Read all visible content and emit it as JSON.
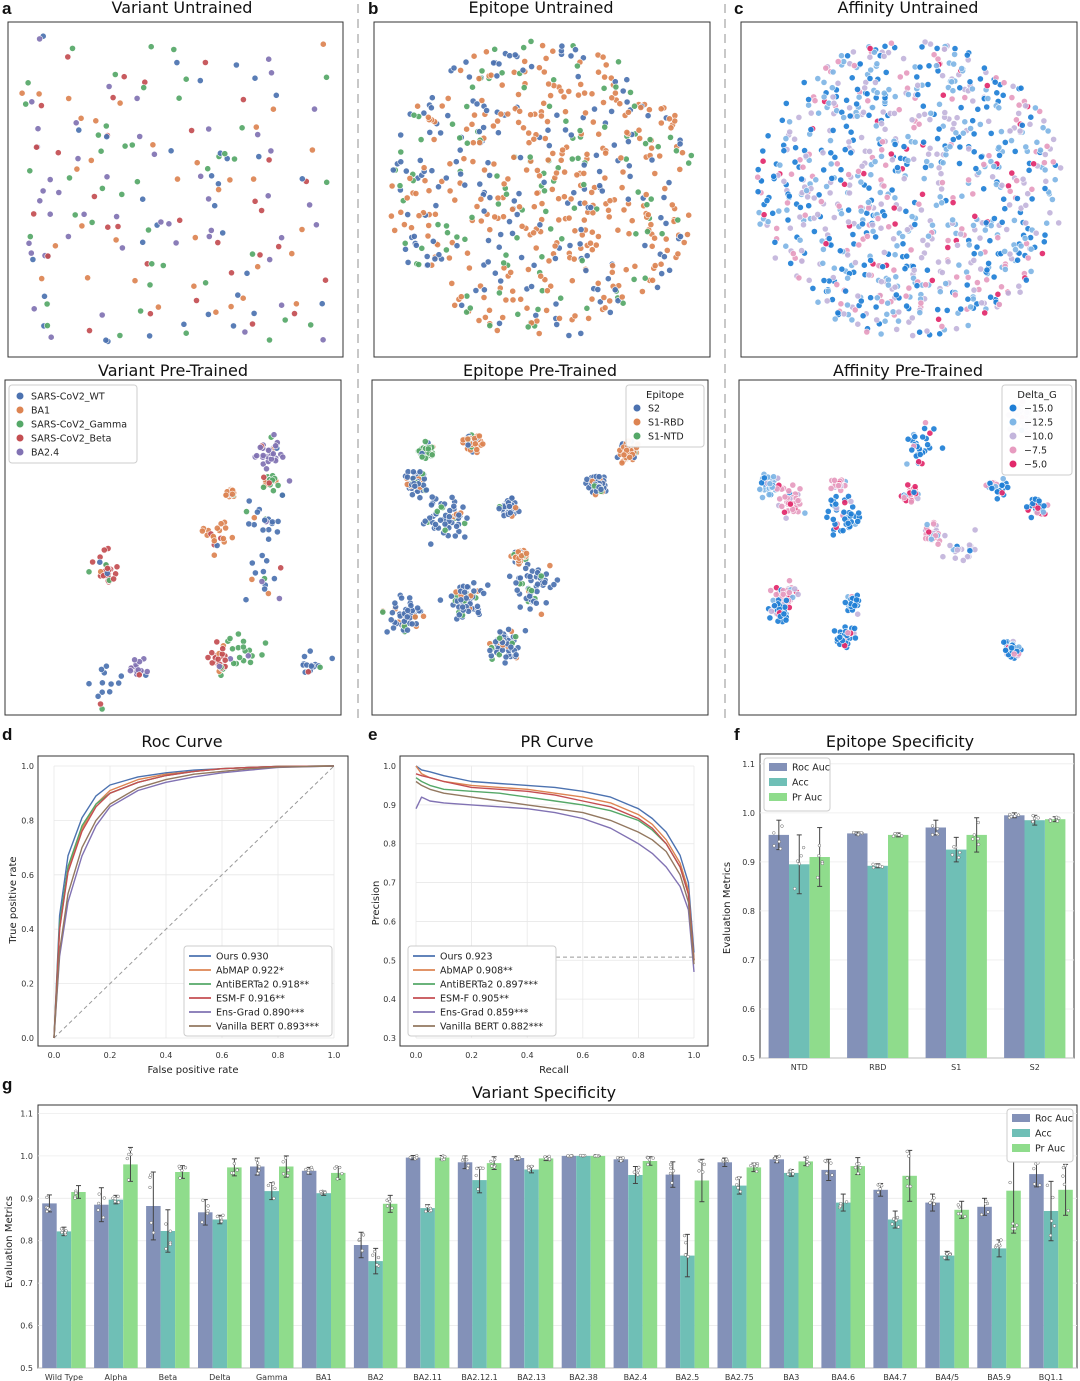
{
  "panel_letters": [
    "a",
    "b",
    "c",
    "d",
    "e",
    "f",
    "g"
  ],
  "scatter_panels": [
    {
      "id": "variant_untrained",
      "title": "Variant Untrained",
      "kind": "variant",
      "seed": 11,
      "count": 190,
      "spread": "uniform"
    },
    {
      "id": "epitope_untrained",
      "title": "Epitope Untrained",
      "kind": "epitope",
      "seed": 23,
      "count": 620,
      "spread": "disc"
    },
    {
      "id": "affinity_untrained",
      "title": "Affinity Untrained",
      "kind": "affinity",
      "seed": 37,
      "count": 900,
      "spread": "disc"
    },
    {
      "id": "variant_pretrained",
      "title": "Variant Pre-Trained",
      "kind": "variant",
      "seed": 41,
      "count": 240,
      "spread": "clusters",
      "legend_title": "",
      "legend": [
        "SARS-CoV2_WT",
        "BA1",
        "SARS-CoV2_Gamma",
        "SARS-CoV2_Beta",
        "BA2.4"
      ]
    },
    {
      "id": "epitope_pretrained",
      "title": "Epitope Pre-Trained",
      "kind": "epitope",
      "seed": 53,
      "count": 700,
      "spread": "clusters",
      "legend_title": "Epitope",
      "legend": [
        "S2",
        "S1-RBD",
        "S1-NTD"
      ]
    },
    {
      "id": "affinity_pretrained",
      "title": "Affinity Pre-Trained",
      "kind": "affinity",
      "seed": 67,
      "count": 520,
      "spread": "clusters",
      "legend_title": "Delta_G",
      "legend": [
        "−15.0",
        "−12.5",
        "−10.0",
        "−7.5",
        "−5.0"
      ]
    }
  ],
  "palettes": {
    "variant": [
      "#4c72b0",
      "#dd8452",
      "#55a868",
      "#c44e52",
      "#8172b3"
    ],
    "epitope": [
      "#4c72b0",
      "#dd8452",
      "#55a868"
    ],
    "affinity": [
      "#1f7fd6",
      "#7fb6e6",
      "#c3b5dc",
      "#e79cc0",
      "#e2296b"
    ]
  },
  "chart_data": [
    {
      "id": "roc",
      "type": "line",
      "title": "Roc Curve",
      "xlabel": "False positive rate",
      "ylabel": "True positive rate",
      "xlim": [
        0,
        1
      ],
      "ylim": [
        0,
        1
      ],
      "xticks": [
        "0.0",
        "0.2",
        "0.4",
        "0.6",
        "0.8",
        "1.0"
      ],
      "yticks": [
        "0.0",
        "0.2",
        "0.4",
        "0.6",
        "0.8",
        "1.0"
      ],
      "legend_position": "lower-right",
      "diagonal": true,
      "series": [
        {
          "name": "Ours 0.930",
          "color": "#4c72b0",
          "x": [
            0,
            0.02,
            0.05,
            0.1,
            0.15,
            0.2,
            0.3,
            0.4,
            0.5,
            0.6,
            0.7,
            0.8,
            1.0
          ],
          "y": [
            0,
            0.45,
            0.67,
            0.81,
            0.89,
            0.93,
            0.96,
            0.975,
            0.985,
            0.99,
            0.995,
            0.998,
            1.0
          ]
        },
        {
          "name": "AbMAP 0.922*",
          "color": "#dd8452",
          "x": [
            0,
            0.02,
            0.05,
            0.1,
            0.15,
            0.2,
            0.3,
            0.4,
            0.5,
            0.6,
            0.7,
            0.8,
            1.0
          ],
          "y": [
            0,
            0.4,
            0.62,
            0.77,
            0.86,
            0.91,
            0.95,
            0.97,
            0.98,
            0.99,
            0.995,
            0.998,
            1.0
          ]
        },
        {
          "name": "AntiBERTa2 0.918**",
          "color": "#55a868",
          "x": [
            0,
            0.02,
            0.05,
            0.1,
            0.15,
            0.2,
            0.3,
            0.4,
            0.5,
            0.6,
            0.7,
            0.8,
            1.0
          ],
          "y": [
            0,
            0.42,
            0.63,
            0.78,
            0.86,
            0.9,
            0.94,
            0.965,
            0.98,
            0.99,
            0.995,
            0.998,
            1.0
          ]
        },
        {
          "name": "ESM-F 0.916**",
          "color": "#c44e52",
          "x": [
            0,
            0.02,
            0.05,
            0.1,
            0.15,
            0.2,
            0.3,
            0.4,
            0.5,
            0.6,
            0.7,
            0.8,
            1.0
          ],
          "y": [
            0,
            0.4,
            0.61,
            0.76,
            0.85,
            0.9,
            0.94,
            0.965,
            0.98,
            0.99,
            0.995,
            0.998,
            1.0
          ]
        },
        {
          "name": "Ens-Grad 0.890***",
          "color": "#8172b3",
          "x": [
            0,
            0.02,
            0.05,
            0.1,
            0.15,
            0.2,
            0.3,
            0.4,
            0.5,
            0.6,
            0.7,
            0.8,
            1.0
          ],
          "y": [
            0,
            0.3,
            0.5,
            0.67,
            0.78,
            0.85,
            0.91,
            0.94,
            0.96,
            0.975,
            0.985,
            0.995,
            1.0
          ]
        },
        {
          "name": "Vanilla BERT 0.893***",
          "color": "#937860",
          "x": [
            0,
            0.02,
            0.05,
            0.1,
            0.15,
            0.2,
            0.3,
            0.4,
            0.5,
            0.6,
            0.7,
            0.8,
            1.0
          ],
          "y": [
            0,
            0.32,
            0.53,
            0.7,
            0.8,
            0.86,
            0.92,
            0.95,
            0.97,
            0.98,
            0.99,
            0.996,
            1.0
          ]
        }
      ]
    },
    {
      "id": "pr",
      "type": "line",
      "title": "PR Curve",
      "xlabel": "Recall",
      "ylabel": "Precision",
      "xlim": [
        0,
        1
      ],
      "ylim": [
        0.3,
        1.0
      ],
      "xticks": [
        "0.0",
        "0.2",
        "0.4",
        "0.6",
        "0.8",
        "1.0"
      ],
      "yticks": [
        "0.3",
        "0.4",
        "0.5",
        "0.6",
        "0.7",
        "0.8",
        "0.9",
        "1.0"
      ],
      "legend_position": "lower-left",
      "baseline": 0.508,
      "series": [
        {
          "name": "Ours 0.923",
          "color": "#4c72b0",
          "x": [
            0,
            0.02,
            0.05,
            0.1,
            0.2,
            0.3,
            0.4,
            0.5,
            0.6,
            0.7,
            0.8,
            0.85,
            0.9,
            0.95,
            0.98,
            1.0
          ],
          "y": [
            1.0,
            0.99,
            0.985,
            0.975,
            0.96,
            0.955,
            0.95,
            0.945,
            0.935,
            0.92,
            0.89,
            0.865,
            0.83,
            0.77,
            0.7,
            0.52
          ]
        },
        {
          "name": "AbMAP 0.908**",
          "color": "#dd8452",
          "x": [
            0,
            0.02,
            0.05,
            0.1,
            0.2,
            0.3,
            0.4,
            0.5,
            0.6,
            0.7,
            0.8,
            0.85,
            0.9,
            0.95,
            0.98,
            1.0
          ],
          "y": [
            1.0,
            0.98,
            0.97,
            0.96,
            0.95,
            0.945,
            0.94,
            0.93,
            0.92,
            0.905,
            0.875,
            0.85,
            0.81,
            0.75,
            0.68,
            0.5
          ]
        },
        {
          "name": "AntiBERTa2 0.897***",
          "color": "#55a868",
          "x": [
            0,
            0.02,
            0.05,
            0.1,
            0.2,
            0.3,
            0.4,
            0.5,
            0.6,
            0.7,
            0.8,
            0.85,
            0.9,
            0.95,
            0.98,
            1.0
          ],
          "y": [
            0.97,
            0.96,
            0.95,
            0.94,
            0.935,
            0.93,
            0.92,
            0.91,
            0.9,
            0.885,
            0.86,
            0.835,
            0.8,
            0.74,
            0.67,
            0.5
          ]
        },
        {
          "name": "ESM-F 0.905**",
          "color": "#c44e52",
          "x": [
            0,
            0.02,
            0.05,
            0.1,
            0.2,
            0.3,
            0.4,
            0.5,
            0.6,
            0.7,
            0.8,
            0.85,
            0.9,
            0.95,
            0.98,
            1.0
          ],
          "y": [
            0.98,
            0.975,
            0.97,
            0.96,
            0.945,
            0.94,
            0.935,
            0.925,
            0.91,
            0.895,
            0.865,
            0.84,
            0.8,
            0.74,
            0.67,
            0.5
          ]
        },
        {
          "name": "Ens-Grad 0.859***",
          "color": "#8172b3",
          "x": [
            0,
            0.02,
            0.05,
            0.1,
            0.2,
            0.3,
            0.4,
            0.5,
            0.6,
            0.7,
            0.8,
            0.85,
            0.9,
            0.95,
            0.98,
            1.0
          ],
          "y": [
            0.89,
            0.92,
            0.91,
            0.905,
            0.9,
            0.895,
            0.89,
            0.88,
            0.865,
            0.84,
            0.8,
            0.775,
            0.74,
            0.69,
            0.63,
            0.47
          ]
        },
        {
          "name": "Vanilla BERT 0.882***",
          "color": "#937860",
          "x": [
            0,
            0.02,
            0.05,
            0.1,
            0.2,
            0.3,
            0.4,
            0.5,
            0.6,
            0.7,
            0.8,
            0.85,
            0.9,
            0.95,
            0.98,
            1.0
          ],
          "y": [
            0.96,
            0.95,
            0.94,
            0.93,
            0.92,
            0.91,
            0.9,
            0.89,
            0.88,
            0.86,
            0.83,
            0.81,
            0.78,
            0.72,
            0.65,
            0.49
          ]
        }
      ]
    },
    {
      "id": "epitope_spec",
      "type": "bar",
      "title": "Epitope Specificity",
      "xlabel": "",
      "ylabel": "Evaluation Metrics",
      "ylim": [
        0.5,
        1.12
      ],
      "yticks": [
        "0.5",
        "0.6",
        "0.7",
        "0.8",
        "0.9",
        "1.0",
        "1.1"
      ],
      "legend_position": "top-left",
      "categories": [
        "NTD",
        "RBD",
        "S1",
        "S2"
      ],
      "series": [
        {
          "name": "Roc Auc",
          "color": "#8391b8",
          "values": [
            0.955,
            0.958,
            0.97,
            0.995
          ],
          "err": [
            0.03,
            0.003,
            0.015,
            0.005
          ]
        },
        {
          "name": "Acc",
          "color": "#6fbfb6",
          "values": [
            0.895,
            0.892,
            0.925,
            0.985
          ],
          "err": [
            0.06,
            0.004,
            0.025,
            0.01
          ]
        },
        {
          "name": "Pr Auc",
          "color": "#8fdc8c",
          "values": [
            0.91,
            0.955,
            0.955,
            0.987
          ],
          "err": [
            0.06,
            0.004,
            0.035,
            0.005
          ]
        }
      ]
    },
    {
      "id": "variant_spec",
      "type": "bar",
      "title": "Variant Specificity",
      "xlabel": "",
      "ylabel": "Evaluation Metrics",
      "ylim": [
        0.5,
        1.12
      ],
      "yticks": [
        "0.5",
        "0.6",
        "0.7",
        "0.8",
        "0.9",
        "1.0",
        "1.1"
      ],
      "legend_position": "top-right",
      "categories": [
        "Wild Type",
        "Alpha",
        "Beta",
        "Delta",
        "Gamma",
        "BA1",
        "BA2",
        "BA2.11",
        "BA2.12.1",
        "BA2.13",
        "BA2.38",
        "BA2.4",
        "BA2.5",
        "BA2.75",
        "BA3",
        "BA4.6",
        "BA4.7",
        "BA4/5",
        "BA5.9",
        "BQ1.1"
      ],
      "series": [
        {
          "name": "Roc Auc",
          "color": "#8391b8",
          "values": [
            0.888,
            0.885,
            0.882,
            0.867,
            0.975,
            0.965,
            0.79,
            0.996,
            0.985,
            0.995,
            1.0,
            0.992,
            0.956,
            0.985,
            0.992,
            0.967,
            0.92,
            0.89,
            0.88,
            0.957
          ],
          "err": [
            0.02,
            0.04,
            0.08,
            0.03,
            0.02,
            0.008,
            0.03,
            0.005,
            0.015,
            0.005,
            0.001,
            0.005,
            0.03,
            0.01,
            0.008,
            0.025,
            0.015,
            0.02,
            0.02,
            0.03
          ]
        },
        {
          "name": "Acc",
          "color": "#6fbfb6",
          "values": [
            0.822,
            0.897,
            0.823,
            0.85,
            0.917,
            0.912,
            0.752,
            0.877,
            0.943,
            0.968,
            1.0,
            0.955,
            0.765,
            0.93,
            0.96,
            0.89,
            0.85,
            0.765,
            0.782,
            0.87
          ],
          "err": [
            0.01,
            0.01,
            0.05,
            0.01,
            0.02,
            0.005,
            0.03,
            0.008,
            0.03,
            0.008,
            0.001,
            0.02,
            0.05,
            0.02,
            0.008,
            0.02,
            0.02,
            0.01,
            0.02,
            0.07
          ]
        },
        {
          "name": "Pr Auc",
          "color": "#8fdc8c",
          "values": [
            0.915,
            0.98,
            0.962,
            0.973,
            0.975,
            0.96,
            0.887,
            0.996,
            0.983,
            0.994,
            1.0,
            0.988,
            0.942,
            0.973,
            0.987,
            0.976,
            0.953,
            0.873,
            0.918,
            0.92
          ],
          "err": [
            0.015,
            0.04,
            0.015,
            0.02,
            0.025,
            0.015,
            0.02,
            0.005,
            0.015,
            0.005,
            0.001,
            0.01,
            0.05,
            0.01,
            0.01,
            0.02,
            0.06,
            0.02,
            0.1,
            0.06
          ]
        }
      ]
    }
  ]
}
